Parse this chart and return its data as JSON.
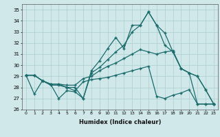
{
  "xlabel": "Humidex (Indice chaleur)",
  "ylabel": "",
  "xlim": [
    -0.5,
    23.5
  ],
  "ylim": [
    26,
    35.5
  ],
  "yticks": [
    26,
    27,
    28,
    29,
    30,
    31,
    32,
    33,
    34,
    35
  ],
  "xticks": [
    0,
    1,
    2,
    3,
    4,
    5,
    6,
    7,
    8,
    9,
    10,
    11,
    12,
    13,
    14,
    15,
    16,
    17,
    18,
    19,
    20,
    21,
    22,
    23
  ],
  "bg_color": "#d0e8ea",
  "grid_color": "#aacdd0",
  "line_color": "#1a6b6b",
  "line1_y": [
    29.1,
    27.4,
    28.6,
    28.3,
    27.0,
    27.7,
    27.6,
    27.0,
    29.5,
    30.4,
    31.5,
    32.5,
    31.5,
    33.6,
    33.6,
    34.8,
    33.6,
    32.9,
    31.2,
    29.7,
    29.3,
    29.0,
    27.8,
    26.5
  ],
  "line2_y": [
    29.1,
    29.1,
    28.6,
    28.2,
    28.2,
    28.0,
    28.0,
    27.0,
    29.3,
    29.8,
    30.5,
    31.2,
    31.8,
    33.0,
    33.6,
    34.8,
    33.6,
    31.8,
    31.2,
    29.7,
    29.3,
    29.0,
    27.8,
    26.5
  ],
  "line3_y": [
    29.1,
    29.1,
    28.6,
    28.3,
    28.3,
    28.2,
    28.2,
    28.8,
    29.0,
    29.5,
    29.9,
    30.2,
    30.6,
    31.0,
    31.4,
    31.2,
    31.0,
    31.2,
    31.3,
    29.7,
    29.3,
    26.5,
    26.5,
    26.5
  ],
  "line4_y": [
    29.1,
    29.1,
    28.6,
    28.3,
    28.3,
    28.0,
    27.7,
    28.5,
    28.7,
    28.8,
    28.9,
    29.1,
    29.3,
    29.5,
    29.7,
    29.9,
    27.2,
    27.0,
    27.3,
    27.5,
    27.8,
    26.5,
    26.5,
    26.5
  ]
}
